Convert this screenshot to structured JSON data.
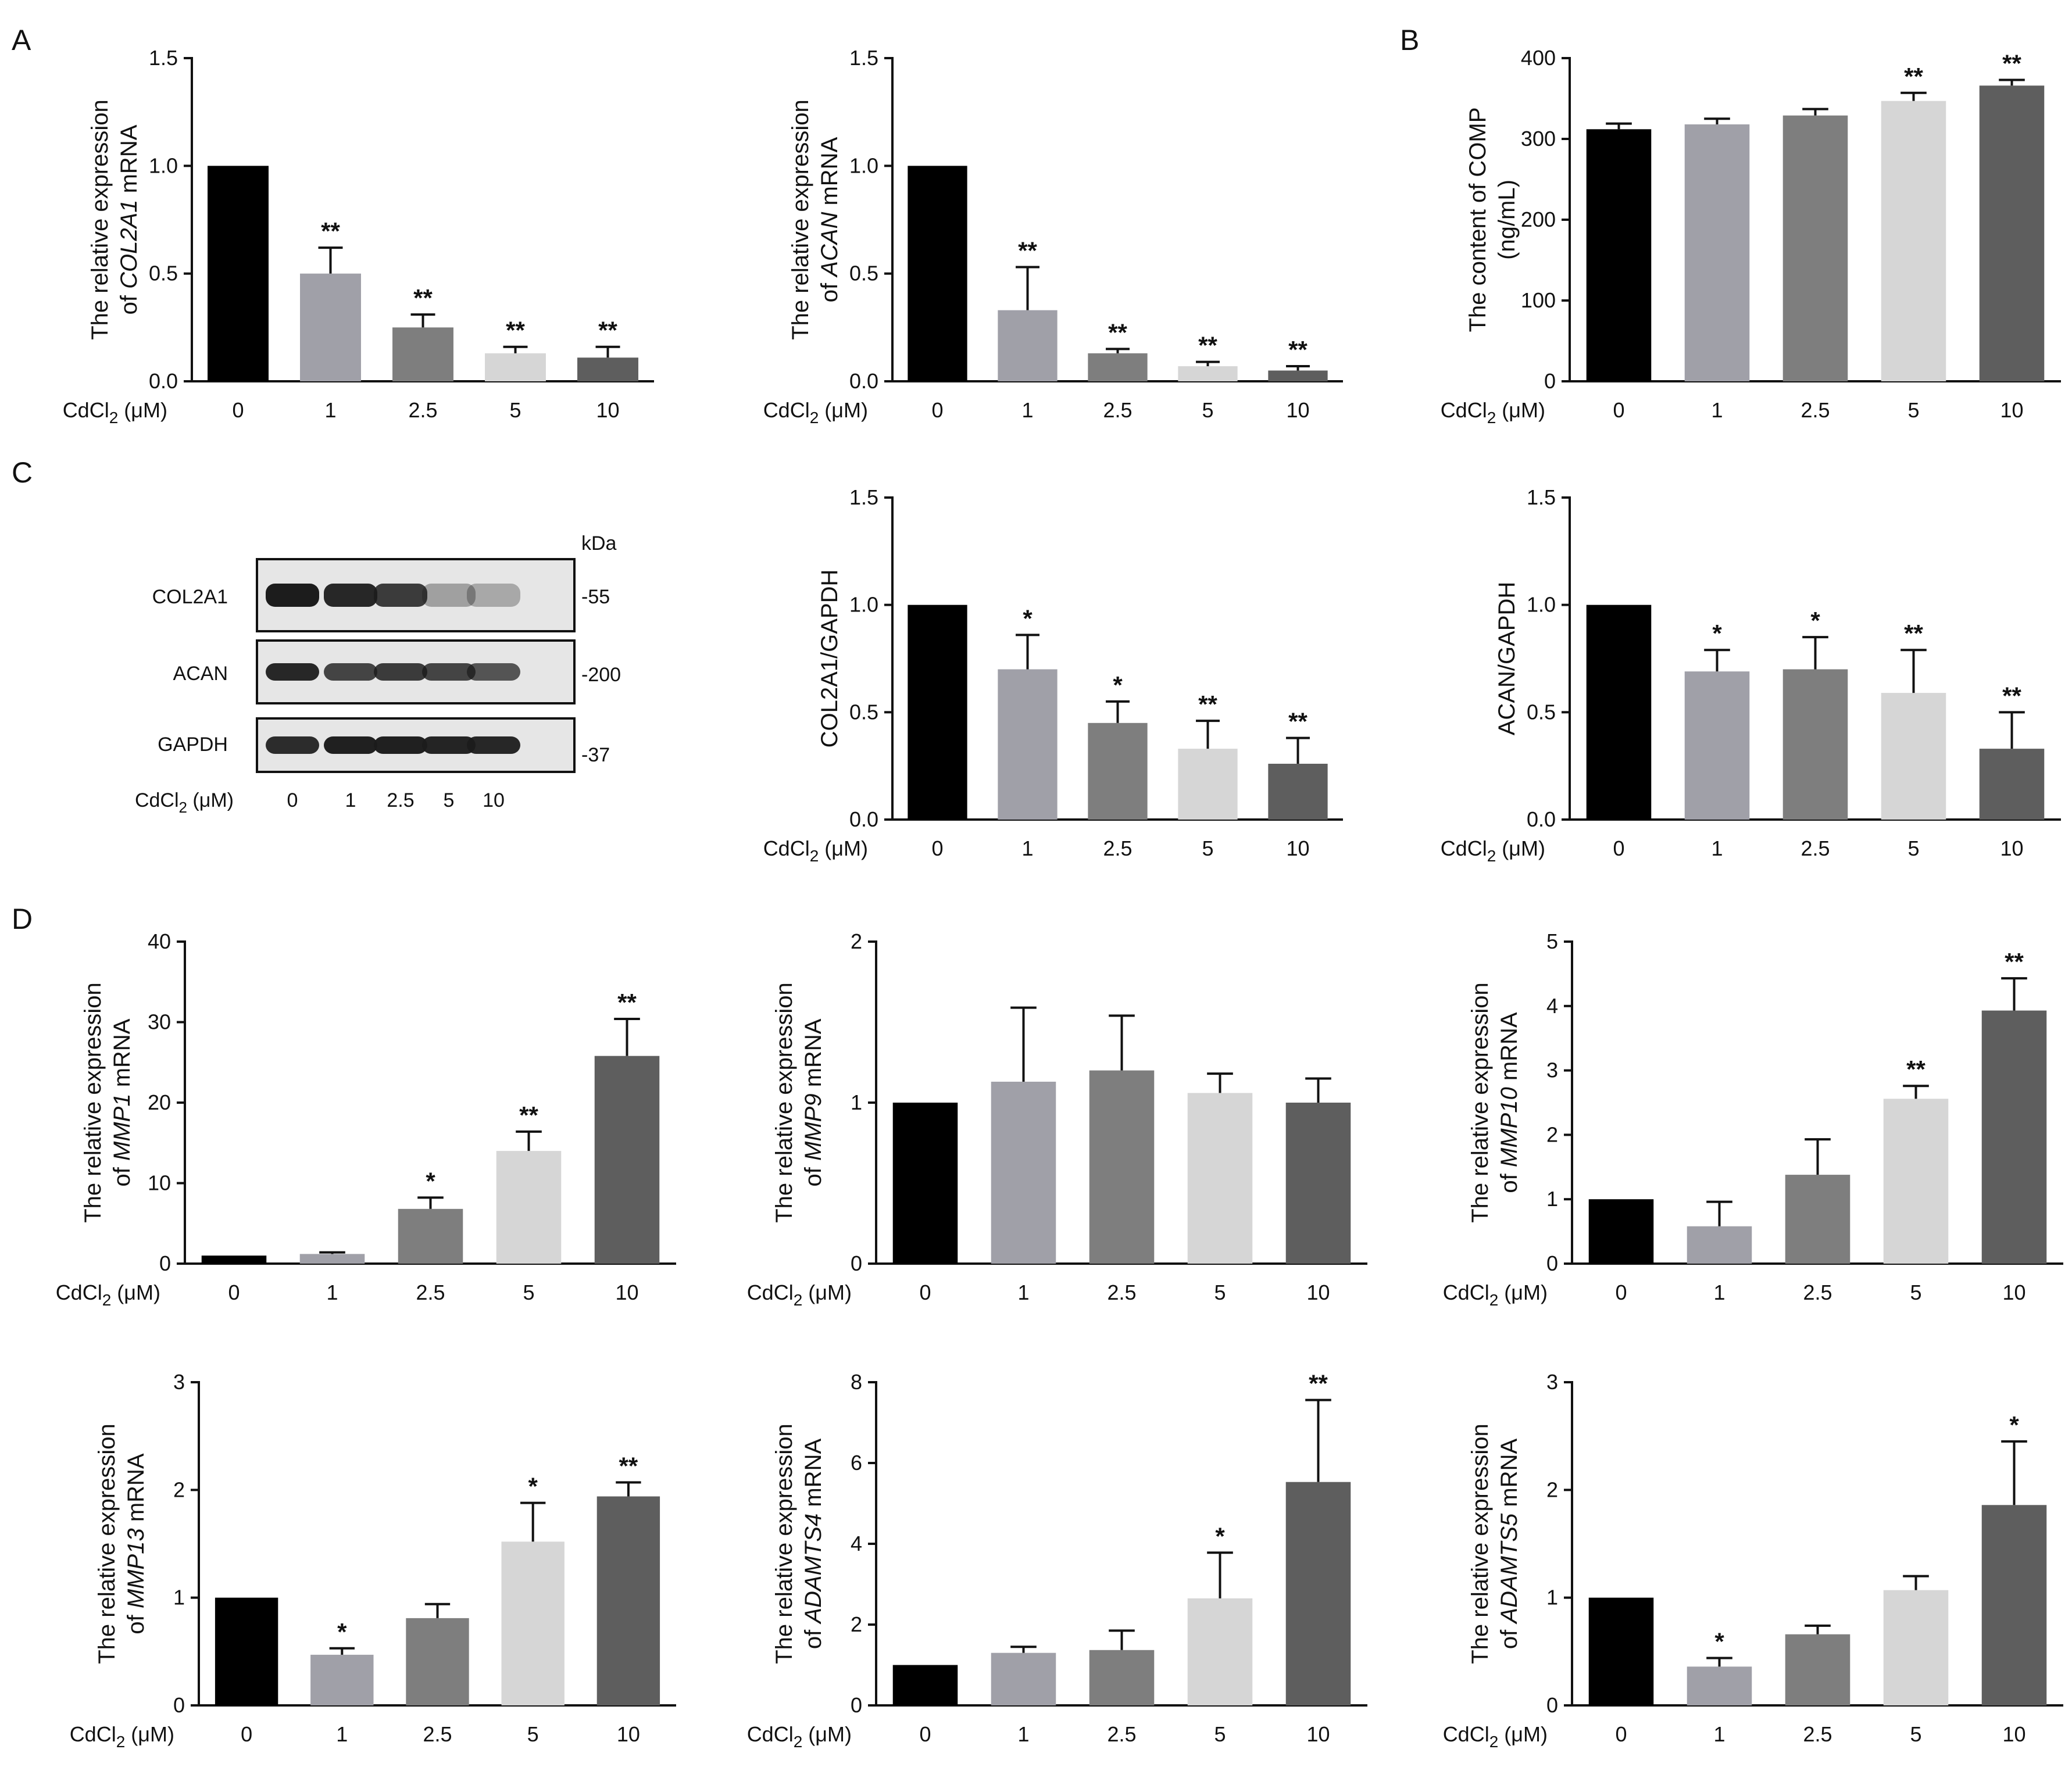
{
  "panel_letters": [
    "A",
    "B",
    "C",
    "D"
  ],
  "western_blot": {
    "kda_label": "kDa",
    "x_label_main": "CdCl",
    "x_label_sub": "2",
    "x_label_unit": " (μM)",
    "doses": [
      "0",
      "1",
      "2.5",
      "5",
      "10"
    ],
    "rows": [
      {
        "name": "COL2A1",
        "kda": "-55"
      },
      {
        "name": "ACAN",
        "kda": "-200"
      },
      {
        "name": "GAPDH",
        "kda": "-37"
      }
    ]
  },
  "colors": {
    "bars": [
      "#000000",
      "#a0a0a8",
      "#7e7e7e",
      "#d6d6d6",
      "#5e5e5e"
    ],
    "axis": "#111111",
    "blot_bg": "#e6e6e6",
    "band": "#1c1c1c"
  },
  "chart_data": [
    {
      "id": "col2a1-mrna",
      "type": "bar",
      "categories": [
        "0",
        "1",
        "2.5",
        "5",
        "10"
      ],
      "values": [
        1.0,
        0.5,
        0.25,
        0.13,
        0.11
      ],
      "errors": [
        0.0,
        0.12,
        0.06,
        0.03,
        0.05
      ],
      "sig": [
        "",
        "**",
        "**",
        "**",
        "**"
      ],
      "yticks": [
        "0.0",
        "0.5",
        "1.0",
        "1.5"
      ],
      "ylim": [
        0,
        1.5
      ],
      "ylabel_lines": [
        [
          {
            "t": "The relative expression",
            "i": false
          }
        ],
        [
          {
            "t": "of ",
            "i": false
          },
          {
            "t": "COL2A1",
            "i": true
          },
          {
            "t": " mRNA",
            "i": false
          }
        ]
      ],
      "xlabel_main": "CdCl",
      "xlabel_sub": "2",
      "xlabel_unit": " (μM)"
    },
    {
      "id": "acan-mrna",
      "type": "bar",
      "categories": [
        "0",
        "1",
        "2.5",
        "5",
        "10"
      ],
      "values": [
        1.0,
        0.33,
        0.13,
        0.07,
        0.05
      ],
      "errors": [
        0.0,
        0.2,
        0.02,
        0.02,
        0.02
      ],
      "sig": [
        "",
        "**",
        "**",
        "**",
        "**"
      ],
      "yticks": [
        "0.0",
        "0.5",
        "1.0",
        "1.5"
      ],
      "ylim": [
        0,
        1.5
      ],
      "ylabel_lines": [
        [
          {
            "t": "The relative expression",
            "i": false
          }
        ],
        [
          {
            "t": "of ",
            "i": false
          },
          {
            "t": "ACAN",
            "i": true
          },
          {
            "t": " mRNA",
            "i": false
          }
        ]
      ],
      "xlabel_main": "CdCl",
      "xlabel_sub": "2",
      "xlabel_unit": " (μM)"
    },
    {
      "id": "comp-content",
      "type": "bar",
      "categories": [
        "0",
        "1",
        "2.5",
        "5",
        "10"
      ],
      "values": [
        312,
        318,
        329,
        347,
        366
      ],
      "errors": [
        7,
        7,
        8,
        10,
        7
      ],
      "sig": [
        "",
        "",
        "",
        "**",
        "**"
      ],
      "yticks": [
        "0",
        "100",
        "200",
        "300",
        "400"
      ],
      "ylim": [
        0,
        400
      ],
      "ylabel_lines": [
        [
          {
            "t": "The content of COMP",
            "i": false
          }
        ],
        [
          {
            "t": "(ng/mL)",
            "i": false
          }
        ]
      ],
      "xlabel_main": "CdCl",
      "xlabel_sub": "2",
      "xlabel_unit": " (μM)"
    },
    {
      "id": "col2a1-gapdh",
      "type": "bar",
      "categories": [
        "0",
        "1",
        "2.5",
        "5",
        "10"
      ],
      "values": [
        1.0,
        0.7,
        0.45,
        0.33,
        0.26
      ],
      "errors": [
        0.0,
        0.16,
        0.1,
        0.13,
        0.12
      ],
      "sig": [
        "",
        "*",
        "*",
        "**",
        "**"
      ],
      "yticks": [
        "0.0",
        "0.5",
        "1.0",
        "1.5"
      ],
      "ylim": [
        0,
        1.5
      ],
      "ylabel_lines": [
        [
          {
            "t": "COL2A1/GAPDH",
            "i": false
          }
        ]
      ],
      "xlabel_main": "CdCl",
      "xlabel_sub": "2",
      "xlabel_unit": " (μM)"
    },
    {
      "id": "acan-gapdh",
      "type": "bar",
      "categories": [
        "0",
        "1",
        "2.5",
        "5",
        "10"
      ],
      "values": [
        1.0,
        0.69,
        0.7,
        0.59,
        0.33
      ],
      "errors": [
        0.0,
        0.1,
        0.15,
        0.2,
        0.17
      ],
      "sig": [
        "",
        "*",
        "*",
        "**",
        "**"
      ],
      "yticks": [
        "0.0",
        "0.5",
        "1.0",
        "1.5"
      ],
      "ylim": [
        0,
        1.5
      ],
      "ylabel_lines": [
        [
          {
            "t": "ACAN/GAPDH",
            "i": false
          }
        ]
      ],
      "xlabel_main": "CdCl",
      "xlabel_sub": "2",
      "xlabel_unit": " (μM)"
    },
    {
      "id": "mmp1-mrna",
      "type": "bar",
      "categories": [
        "0",
        "1",
        "2.5",
        "5",
        "10"
      ],
      "values": [
        1.0,
        1.2,
        6.8,
        14.0,
        25.8
      ],
      "errors": [
        0.0,
        0.2,
        1.4,
        2.4,
        4.6
      ],
      "sig": [
        "",
        "",
        "*",
        "**",
        "**"
      ],
      "yticks": [
        "0",
        "10",
        "20",
        "30",
        "40"
      ],
      "ylim": [
        0,
        40
      ],
      "ylabel_lines": [
        [
          {
            "t": "The relative expression",
            "i": false
          }
        ],
        [
          {
            "t": "of ",
            "i": false
          },
          {
            "t": "MMP1",
            "i": true
          },
          {
            "t": " mRNA",
            "i": false
          }
        ]
      ],
      "xlabel_main": "CdCl",
      "xlabel_sub": "2",
      "xlabel_unit": " (μM)"
    },
    {
      "id": "mmp9-mrna",
      "type": "bar",
      "categories": [
        "0",
        "1",
        "2.5",
        "5",
        "10"
      ],
      "values": [
        1.0,
        1.13,
        1.2,
        1.06,
        1.0
      ],
      "errors": [
        0.0,
        0.46,
        0.34,
        0.12,
        0.15
      ],
      "sig": [
        "",
        "",
        "",
        "",
        ""
      ],
      "yticks": [
        "0",
        "1",
        "2"
      ],
      "ylim": [
        0,
        2
      ],
      "ylabel_lines": [
        [
          {
            "t": "The relative expression",
            "i": false
          }
        ],
        [
          {
            "t": "of ",
            "i": false
          },
          {
            "t": "MMP9",
            "i": true
          },
          {
            "t": " mRNA",
            "i": false
          }
        ]
      ],
      "xlabel_main": "CdCl",
      "xlabel_sub": "2",
      "xlabel_unit": " (μM)"
    },
    {
      "id": "mmp10-mrna",
      "type": "bar",
      "categories": [
        "0",
        "1",
        "2.5",
        "5",
        "10"
      ],
      "values": [
        1.0,
        0.58,
        1.38,
        2.56,
        3.93
      ],
      "errors": [
        0.0,
        0.38,
        0.55,
        0.2,
        0.5
      ],
      "sig": [
        "",
        "",
        "",
        "**",
        "**"
      ],
      "yticks": [
        "0",
        "1",
        "2",
        "3",
        "4",
        "5"
      ],
      "ylim": [
        0,
        5
      ],
      "ylabel_lines": [
        [
          {
            "t": "The relative expression",
            "i": false
          }
        ],
        [
          {
            "t": "of ",
            "i": false
          },
          {
            "t": "MMP10",
            "i": true
          },
          {
            "t": " mRNA",
            "i": false
          }
        ]
      ],
      "xlabel_main": "CdCl",
      "xlabel_sub": "2",
      "xlabel_unit": " (μM)"
    },
    {
      "id": "mmp13-mrna",
      "type": "bar",
      "categories": [
        "0",
        "1",
        "2.5",
        "5",
        "10"
      ],
      "values": [
        1.0,
        0.47,
        0.81,
        1.52,
        1.94
      ],
      "errors": [
        0.0,
        0.06,
        0.13,
        0.36,
        0.13
      ],
      "sig": [
        "",
        "*",
        "",
        "*",
        "**"
      ],
      "yticks": [
        "0",
        "1",
        "2",
        "3"
      ],
      "ylim": [
        0,
        3
      ],
      "ylabel_lines": [
        [
          {
            "t": "The relative expression",
            "i": false
          }
        ],
        [
          {
            "t": "of ",
            "i": false
          },
          {
            "t": "MMP13",
            "i": true
          },
          {
            "t": " mRNA",
            "i": false
          }
        ]
      ],
      "xlabel_main": "CdCl",
      "xlabel_sub": "2",
      "xlabel_unit": " (μM)"
    },
    {
      "id": "adamts4-mrna",
      "type": "bar",
      "categories": [
        "0",
        "1",
        "2.5",
        "5",
        "10"
      ],
      "values": [
        1.0,
        1.3,
        1.37,
        2.65,
        5.53
      ],
      "errors": [
        0.0,
        0.15,
        0.48,
        1.13,
        2.03
      ],
      "sig": [
        "",
        "",
        "",
        "*",
        "**"
      ],
      "yticks": [
        "0",
        "2",
        "4",
        "6",
        "8"
      ],
      "ylim": [
        0,
        8
      ],
      "ylabel_lines": [
        [
          {
            "t": "The relative expression",
            "i": false
          }
        ],
        [
          {
            "t": "of ",
            "i": false
          },
          {
            "t": "ADAMTS4",
            "i": true
          },
          {
            "t": " mRNA",
            "i": false
          }
        ]
      ],
      "xlabel_main": "CdCl",
      "xlabel_sub": "2",
      "xlabel_unit": " (μM)"
    },
    {
      "id": "adamts5-mrna",
      "type": "bar",
      "categories": [
        "0",
        "1",
        "2.5",
        "5",
        "10"
      ],
      "values": [
        1.0,
        0.36,
        0.66,
        1.07,
        1.86
      ],
      "errors": [
        0.0,
        0.08,
        0.08,
        0.13,
        0.59
      ],
      "sig": [
        "",
        "*",
        "",
        "",
        "*"
      ],
      "yticks": [
        "0",
        "1",
        "2",
        "3"
      ],
      "ylim": [
        0,
        3
      ],
      "ylabel_lines": [
        [
          {
            "t": "The relative expression",
            "i": false
          }
        ],
        [
          {
            "t": "of ",
            "i": false
          },
          {
            "t": "ADAMTS5",
            "i": true
          },
          {
            "t": " mRNA",
            "i": false
          }
        ]
      ],
      "xlabel_main": "CdCl",
      "xlabel_sub": "2",
      "xlabel_unit": " (μM)"
    }
  ]
}
